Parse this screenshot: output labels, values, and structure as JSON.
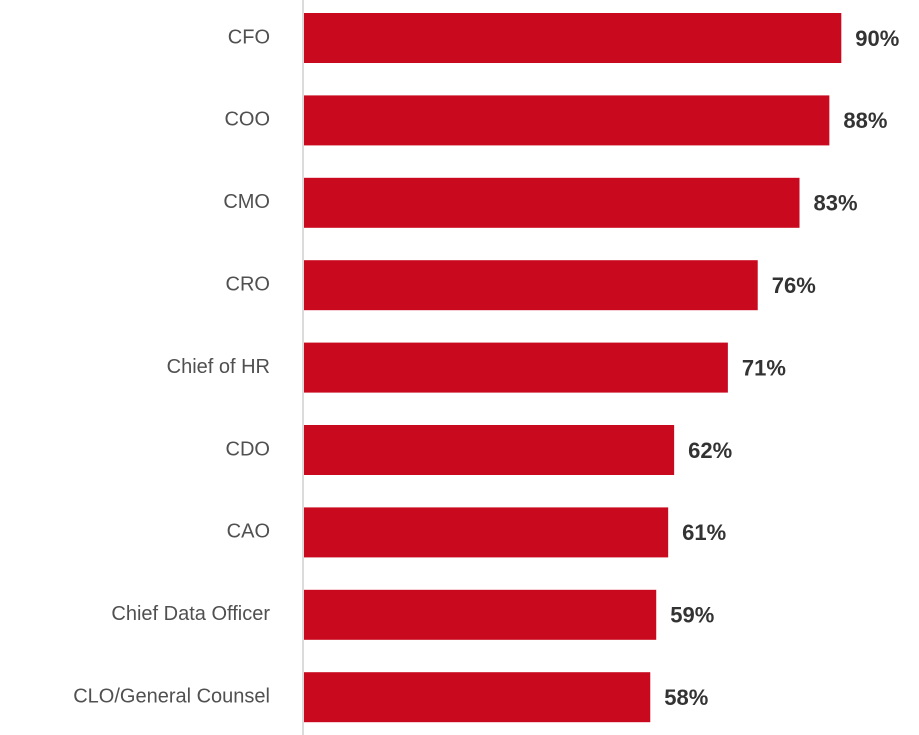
{
  "chart_data": {
    "type": "bar",
    "orientation": "horizontal",
    "categories": [
      "CFO",
      "COO",
      "CMO",
      "CRO",
      "Chief of HR",
      "CDO",
      "CAO",
      "Chief Data Officer",
      "CLO/General Counsel"
    ],
    "values": [
      90,
      88,
      83,
      76,
      71,
      62,
      61,
      59,
      58
    ],
    "value_labels": [
      "90%",
      "88%",
      "83%",
      "76%",
      "71%",
      "62%",
      "61%",
      "59%",
      "58%"
    ],
    "color": "#c8091e"
  }
}
